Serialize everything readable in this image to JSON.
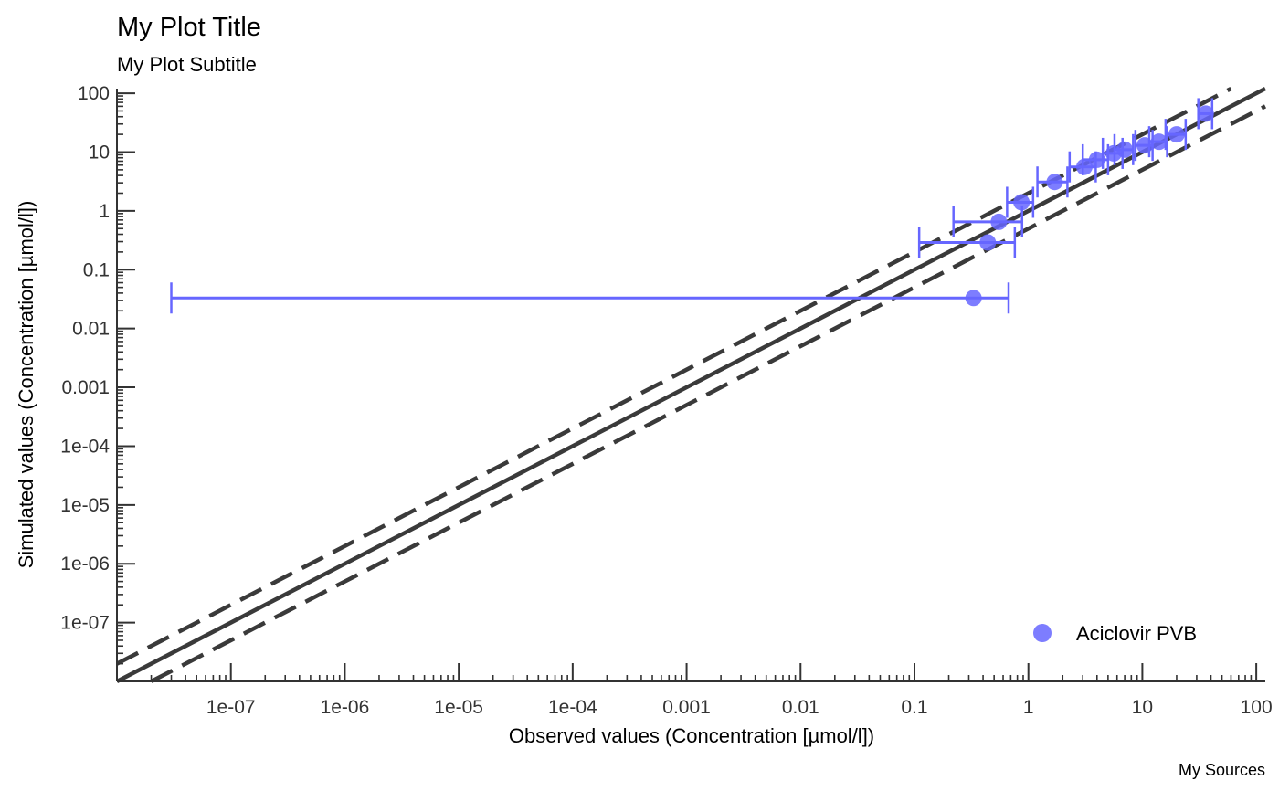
{
  "chart_data": {
    "type": "scatter",
    "title": "My Plot Title",
    "subtitle": "My Plot Subtitle",
    "caption": "My Sources",
    "xlabel": "Observed values (Concentration [µmol/l])",
    "ylabel": "Simulated values (Concentration [µmol/l])",
    "x_scale": "log10",
    "y_scale": "log10",
    "xlim": [
      1e-08,
      120
    ],
    "ylim": [
      1e-08,
      120
    ],
    "x_ticks": [
      {
        "value": 1e-07,
        "label": "1e-07"
      },
      {
        "value": 1e-06,
        "label": "1e-06"
      },
      {
        "value": 1e-05,
        "label": "1e-05"
      },
      {
        "value": 0.0001,
        "label": "1e-04"
      },
      {
        "value": 0.001,
        "label": "0.001"
      },
      {
        "value": 0.01,
        "label": "0.01"
      },
      {
        "value": 0.1,
        "label": "0.1"
      },
      {
        "value": 1,
        "label": "1"
      },
      {
        "value": 10,
        "label": "10"
      },
      {
        "value": 100,
        "label": "100"
      }
    ],
    "y_ticks": [
      {
        "value": 1e-07,
        "label": "1e-07"
      },
      {
        "value": 1e-06,
        "label": "1e-06"
      },
      {
        "value": 1e-05,
        "label": "1e-05"
      },
      {
        "value": 0.0001,
        "label": "1e-04"
      },
      {
        "value": 0.001,
        "label": "0.001"
      },
      {
        "value": 0.01,
        "label": "0.01"
      },
      {
        "value": 0.1,
        "label": "0.1"
      },
      {
        "value": 1,
        "label": "1"
      },
      {
        "value": 10,
        "label": "10"
      },
      {
        "value": 100,
        "label": "100"
      }
    ],
    "reference_lines": [
      {
        "style": "solid",
        "ratio": 1,
        "color": "#3a3a3a"
      },
      {
        "style": "dashed",
        "ratio": 2,
        "color": "#3a3a3a"
      },
      {
        "style": "dashed",
        "ratio": 0.5,
        "color": "#3a3a3a"
      }
    ],
    "series": [
      {
        "name": "Aciclovir PVB",
        "color": "#6666ff",
        "points": [
          {
            "x": 0.33,
            "y": 0.033,
            "xmin": 3e-08,
            "xmax": 0.67
          },
          {
            "x": 0.44,
            "y": 0.29,
            "xmin": 0.11,
            "xmax": 0.76
          },
          {
            "x": 0.55,
            "y": 0.65,
            "xmin": 0.22,
            "xmax": 0.88
          },
          {
            "x": 0.87,
            "y": 1.4,
            "xmin": 0.65,
            "xmax": 1.1
          },
          {
            "x": 1.7,
            "y": 3.1,
            "xmin": 1.2,
            "xmax": 2.2
          },
          {
            "x": 3.1,
            "y": 5.6,
            "xmin": 2.3,
            "xmax": 3.9
          },
          {
            "x": 4.0,
            "y": 7.4,
            "xmin": 3.0,
            "xmax": 5.0
          },
          {
            "x": 5.6,
            "y": 9.5,
            "xmin": 4.5,
            "xmax": 6.7
          },
          {
            "x": 7.0,
            "y": 11,
            "xmin": 5.7,
            "xmax": 8.3
          },
          {
            "x": 10.5,
            "y": 13,
            "xmin": 8.7,
            "xmax": 12.3
          },
          {
            "x": 14,
            "y": 15,
            "xmin": 11.5,
            "xmax": 16.5
          },
          {
            "x": 20,
            "y": 20,
            "xmin": 16,
            "xmax": 24
          },
          {
            "x": 36,
            "y": 45,
            "xmin": 31,
            "xmax": 41
          }
        ]
      }
    ],
    "legend": {
      "position": "bottom-right",
      "entries": [
        "Aciclovir PVB"
      ]
    }
  }
}
